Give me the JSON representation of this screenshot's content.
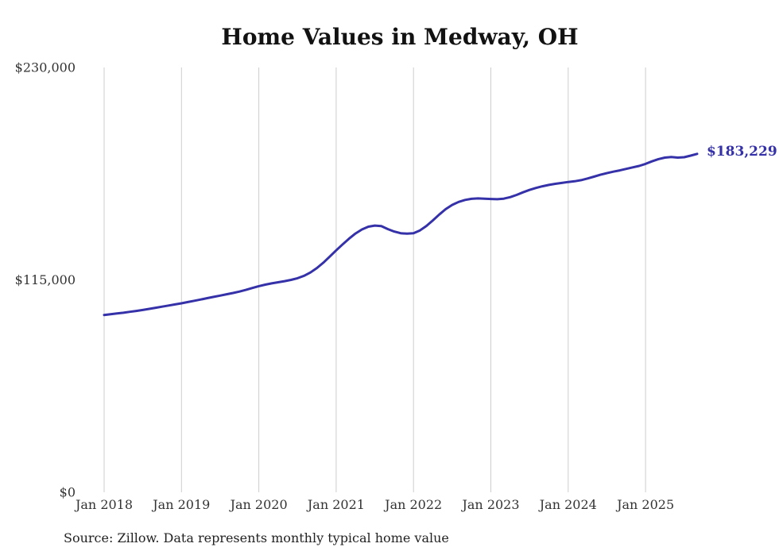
{
  "title": "Home Values in Medway, OH",
  "source_note": "Source: Zillow. Data represents monthly typical home value",
  "end_label": "$183,229",
  "colors": {
    "line": "#3531a8",
    "grid": "#cdcdcd",
    "title": "#121212",
    "tick": "#333333",
    "source": "#222222"
  },
  "chart_data": {
    "type": "line",
    "title": "Home Values in Medway, OH",
    "x_tick_labels": [
      "Jan 2018",
      "Jan 2019",
      "Jan 2020",
      "Jan 2021",
      "Jan 2022",
      "Jan 2023",
      "Jan 2024",
      "Jan 2025"
    ],
    "y_ticks": [
      0,
      115000,
      230000
    ],
    "y_tick_labels": [
      "$0",
      "$115,000",
      "$230,000"
    ],
    "ylim": [
      0,
      230000
    ],
    "x_start_month": "2018-01",
    "x_end_month": "2025-09",
    "points_per_year": 12,
    "grid": "vertical-only",
    "legend": "none",
    "final_value": 183229,
    "series": [
      {
        "name": "Monthly typical home value",
        "values": [
          96000,
          96400,
          96800,
          97200,
          97700,
          98200,
          98700,
          99300,
          99900,
          100500,
          101100,
          101700,
          102300,
          103000,
          103700,
          104400,
          105100,
          105800,
          106500,
          107200,
          107900,
          108700,
          109600,
          110600,
          111600,
          112400,
          113100,
          113700,
          114300,
          115000,
          115900,
          117200,
          119000,
          121400,
          124300,
          127600,
          131000,
          134200,
          137300,
          140100,
          142300,
          143800,
          144400,
          144100,
          142500,
          141200,
          140300,
          140000,
          140300,
          141800,
          144200,
          147200,
          150400,
          153300,
          155600,
          157200,
          158300,
          158900,
          159100,
          159000,
          158800,
          158700,
          159000,
          159800,
          161000,
          162400,
          163700,
          164800,
          165700,
          166400,
          167000,
          167500,
          168000,
          168400,
          169000,
          169900,
          170900,
          171900,
          172800,
          173600,
          174300,
          175100,
          175900,
          176700,
          177800,
          179200,
          180400,
          181200,
          181500,
          181200,
          181400,
          182300,
          183229
        ]
      }
    ]
  }
}
